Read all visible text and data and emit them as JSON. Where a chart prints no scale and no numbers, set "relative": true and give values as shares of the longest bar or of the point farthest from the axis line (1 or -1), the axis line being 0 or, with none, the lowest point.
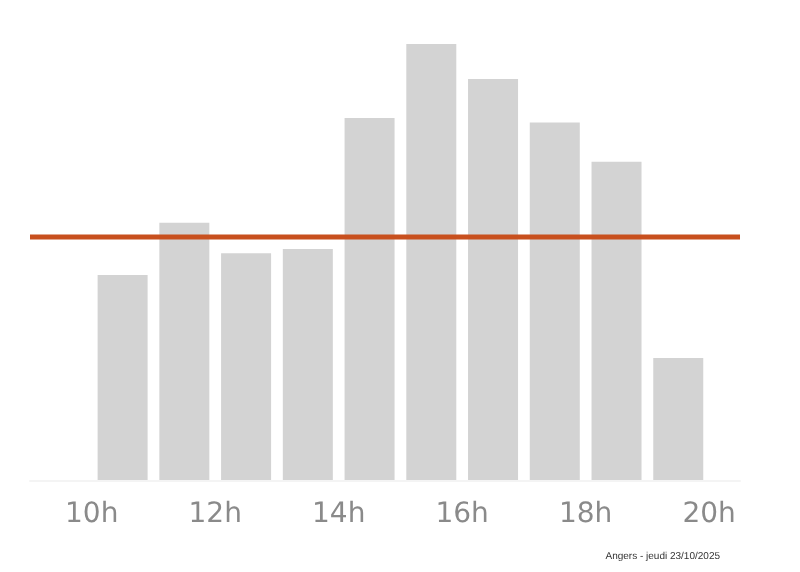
{
  "chart_data": {
    "type": "bar",
    "relative": true,
    "x": [
      10.5,
      11.5,
      12.5,
      13.5,
      14.5,
      15.5,
      16.5,
      17.5,
      18.5,
      19.5
    ],
    "values": [
      0.47,
      0.59,
      0.52,
      0.53,
      0.83,
      1,
      0.92,
      0.82,
      0.73,
      0.28
    ],
    "color": "#d3d3d3",
    "xlim": [
      9,
      20.5
    ],
    "xticks": [
      {
        "value": 10,
        "label": "10h"
      },
      {
        "value": 12,
        "label": "12h"
      },
      {
        "value": 14,
        "label": "14h"
      },
      {
        "value": 16,
        "label": "16h"
      },
      {
        "value": 18,
        "label": "18h"
      },
      {
        "value": 20,
        "label": "20h"
      }
    ],
    "ref_lines": [
      {
        "axis": "y",
        "value": 0.56,
        "color": "#c8501e"
      }
    ],
    "annotations": [
      "Angers - jeudi 23/10/2025"
    ]
  }
}
